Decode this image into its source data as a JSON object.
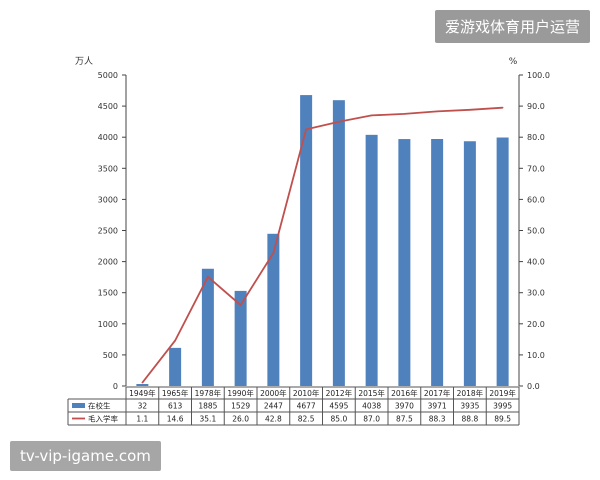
{
  "watermarks": {
    "top_right": "爱游戏体育用户运营",
    "bottom_left": "tv-vip-igame.com"
  },
  "colors": {
    "bar": "#4f81bd",
    "line": "#c0504d",
    "axis": "#444444",
    "table_border": "#555555"
  },
  "chart_data": {
    "type": "bar",
    "title": "",
    "y_unit_left": "万人",
    "y_unit_right": "%",
    "left_axis": {
      "ylim": [
        0,
        5000
      ],
      "ticks": [
        "0",
        "500",
        "1000",
        "1500",
        "2000",
        "2500",
        "3000",
        "3500",
        "4000",
        "4500",
        "5000"
      ]
    },
    "right_axis": {
      "ylim": [
        0,
        100
      ],
      "ticks": [
        "0.0",
        "10.0",
        "20.0",
        "30.0",
        "40.0",
        "50.0",
        "60.0",
        "70.0",
        "80.0",
        "90.0",
        "100.0"
      ]
    },
    "categories": [
      "1949年",
      "1965年",
      "1978年",
      "1990年",
      "2000年",
      "2010年",
      "2012年",
      "2015年",
      "2016年",
      "2017年",
      "2018年",
      "2019年"
    ],
    "series": [
      {
        "name": "在校生",
        "kind": "bar",
        "axis": "left",
        "values": [
          32,
          613,
          1885,
          1529,
          2447,
          4677,
          4595,
          4038,
          3970,
          3971,
          3935,
          3995
        ],
        "labels": [
          "32",
          "613",
          "1885",
          "1529",
          "2447",
          "4677",
          "4595",
          "4038",
          "3970",
          "3971",
          "3935",
          "3995"
        ]
      },
      {
        "name": "毛入学率",
        "kind": "line",
        "axis": "right",
        "values": [
          1.1,
          14.6,
          35.1,
          26.0,
          42.8,
          82.5,
          85.0,
          87.0,
          87.5,
          88.3,
          88.8,
          89.5
        ],
        "labels": [
          "1.1",
          "14.6",
          "35.1",
          "26.0",
          "42.8",
          "82.5",
          "85.0",
          "87.0",
          "87.5",
          "88.3",
          "88.8",
          "89.5"
        ]
      }
    ],
    "grid": false,
    "legend": "data table below chart"
  }
}
